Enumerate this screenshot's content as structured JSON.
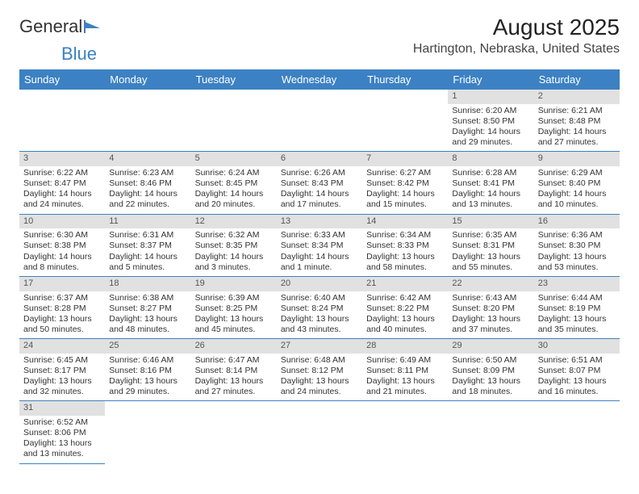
{
  "logo": {
    "part1": "General",
    "part2": "Blue"
  },
  "title": "August 2025",
  "location": "Hartington, Nebraska, United States",
  "header_bg": "#3c81c3",
  "weekdays": [
    "Sunday",
    "Monday",
    "Tuesday",
    "Wednesday",
    "Thursday",
    "Friday",
    "Saturday"
  ],
  "weeks": [
    [
      null,
      null,
      null,
      null,
      null,
      {
        "n": "1",
        "sunrise": "Sunrise: 6:20 AM",
        "sunset": "Sunset: 8:50 PM",
        "day1": "Daylight: 14 hours",
        "day2": "and 29 minutes."
      },
      {
        "n": "2",
        "sunrise": "Sunrise: 6:21 AM",
        "sunset": "Sunset: 8:48 PM",
        "day1": "Daylight: 14 hours",
        "day2": "and 27 minutes."
      }
    ],
    [
      {
        "n": "3",
        "sunrise": "Sunrise: 6:22 AM",
        "sunset": "Sunset: 8:47 PM",
        "day1": "Daylight: 14 hours",
        "day2": "and 24 minutes."
      },
      {
        "n": "4",
        "sunrise": "Sunrise: 6:23 AM",
        "sunset": "Sunset: 8:46 PM",
        "day1": "Daylight: 14 hours",
        "day2": "and 22 minutes."
      },
      {
        "n": "5",
        "sunrise": "Sunrise: 6:24 AM",
        "sunset": "Sunset: 8:45 PM",
        "day1": "Daylight: 14 hours",
        "day2": "and 20 minutes."
      },
      {
        "n": "6",
        "sunrise": "Sunrise: 6:26 AM",
        "sunset": "Sunset: 8:43 PM",
        "day1": "Daylight: 14 hours",
        "day2": "and 17 minutes."
      },
      {
        "n": "7",
        "sunrise": "Sunrise: 6:27 AM",
        "sunset": "Sunset: 8:42 PM",
        "day1": "Daylight: 14 hours",
        "day2": "and 15 minutes."
      },
      {
        "n": "8",
        "sunrise": "Sunrise: 6:28 AM",
        "sunset": "Sunset: 8:41 PM",
        "day1": "Daylight: 14 hours",
        "day2": "and 13 minutes."
      },
      {
        "n": "9",
        "sunrise": "Sunrise: 6:29 AM",
        "sunset": "Sunset: 8:40 PM",
        "day1": "Daylight: 14 hours",
        "day2": "and 10 minutes."
      }
    ],
    [
      {
        "n": "10",
        "sunrise": "Sunrise: 6:30 AM",
        "sunset": "Sunset: 8:38 PM",
        "day1": "Daylight: 14 hours",
        "day2": "and 8 minutes."
      },
      {
        "n": "11",
        "sunrise": "Sunrise: 6:31 AM",
        "sunset": "Sunset: 8:37 PM",
        "day1": "Daylight: 14 hours",
        "day2": "and 5 minutes."
      },
      {
        "n": "12",
        "sunrise": "Sunrise: 6:32 AM",
        "sunset": "Sunset: 8:35 PM",
        "day1": "Daylight: 14 hours",
        "day2": "and 3 minutes."
      },
      {
        "n": "13",
        "sunrise": "Sunrise: 6:33 AM",
        "sunset": "Sunset: 8:34 PM",
        "day1": "Daylight: 14 hours",
        "day2": "and 1 minute."
      },
      {
        "n": "14",
        "sunrise": "Sunrise: 6:34 AM",
        "sunset": "Sunset: 8:33 PM",
        "day1": "Daylight: 13 hours",
        "day2": "and 58 minutes."
      },
      {
        "n": "15",
        "sunrise": "Sunrise: 6:35 AM",
        "sunset": "Sunset: 8:31 PM",
        "day1": "Daylight: 13 hours",
        "day2": "and 55 minutes."
      },
      {
        "n": "16",
        "sunrise": "Sunrise: 6:36 AM",
        "sunset": "Sunset: 8:30 PM",
        "day1": "Daylight: 13 hours",
        "day2": "and 53 minutes."
      }
    ],
    [
      {
        "n": "17",
        "sunrise": "Sunrise: 6:37 AM",
        "sunset": "Sunset: 8:28 PM",
        "day1": "Daylight: 13 hours",
        "day2": "and 50 minutes."
      },
      {
        "n": "18",
        "sunrise": "Sunrise: 6:38 AM",
        "sunset": "Sunset: 8:27 PM",
        "day1": "Daylight: 13 hours",
        "day2": "and 48 minutes."
      },
      {
        "n": "19",
        "sunrise": "Sunrise: 6:39 AM",
        "sunset": "Sunset: 8:25 PM",
        "day1": "Daylight: 13 hours",
        "day2": "and 45 minutes."
      },
      {
        "n": "20",
        "sunrise": "Sunrise: 6:40 AM",
        "sunset": "Sunset: 8:24 PM",
        "day1": "Daylight: 13 hours",
        "day2": "and 43 minutes."
      },
      {
        "n": "21",
        "sunrise": "Sunrise: 6:42 AM",
        "sunset": "Sunset: 8:22 PM",
        "day1": "Daylight: 13 hours",
        "day2": "and 40 minutes."
      },
      {
        "n": "22",
        "sunrise": "Sunrise: 6:43 AM",
        "sunset": "Sunset: 8:20 PM",
        "day1": "Daylight: 13 hours",
        "day2": "and 37 minutes."
      },
      {
        "n": "23",
        "sunrise": "Sunrise: 6:44 AM",
        "sunset": "Sunset: 8:19 PM",
        "day1": "Daylight: 13 hours",
        "day2": "and 35 minutes."
      }
    ],
    [
      {
        "n": "24",
        "sunrise": "Sunrise: 6:45 AM",
        "sunset": "Sunset: 8:17 PM",
        "day1": "Daylight: 13 hours",
        "day2": "and 32 minutes."
      },
      {
        "n": "25",
        "sunrise": "Sunrise: 6:46 AM",
        "sunset": "Sunset: 8:16 PM",
        "day1": "Daylight: 13 hours",
        "day2": "and 29 minutes."
      },
      {
        "n": "26",
        "sunrise": "Sunrise: 6:47 AM",
        "sunset": "Sunset: 8:14 PM",
        "day1": "Daylight: 13 hours",
        "day2": "and 27 minutes."
      },
      {
        "n": "27",
        "sunrise": "Sunrise: 6:48 AM",
        "sunset": "Sunset: 8:12 PM",
        "day1": "Daylight: 13 hours",
        "day2": "and 24 minutes."
      },
      {
        "n": "28",
        "sunrise": "Sunrise: 6:49 AM",
        "sunset": "Sunset: 8:11 PM",
        "day1": "Daylight: 13 hours",
        "day2": "and 21 minutes."
      },
      {
        "n": "29",
        "sunrise": "Sunrise: 6:50 AM",
        "sunset": "Sunset: 8:09 PM",
        "day1": "Daylight: 13 hours",
        "day2": "and 18 minutes."
      },
      {
        "n": "30",
        "sunrise": "Sunrise: 6:51 AM",
        "sunset": "Sunset: 8:07 PM",
        "day1": "Daylight: 13 hours",
        "day2": "and 16 minutes."
      }
    ],
    [
      {
        "n": "31",
        "sunrise": "Sunrise: 6:52 AM",
        "sunset": "Sunset: 8:06 PM",
        "day1": "Daylight: 13 hours",
        "day2": "and 13 minutes."
      },
      null,
      null,
      null,
      null,
      null,
      null
    ]
  ]
}
